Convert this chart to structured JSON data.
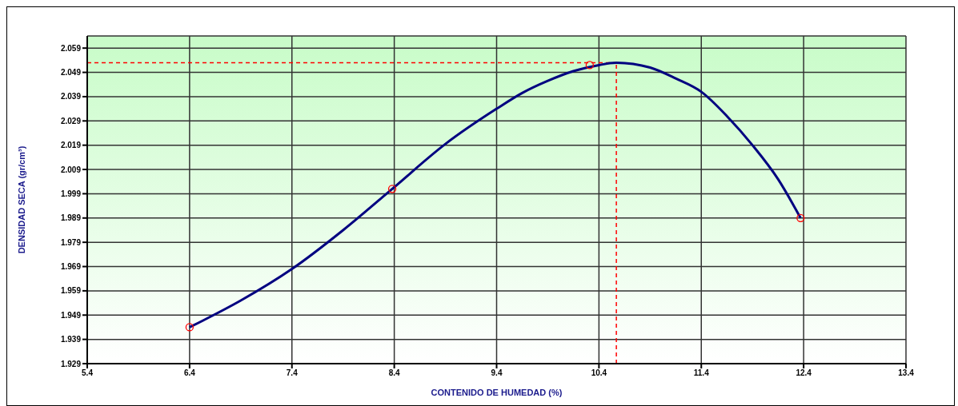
{
  "chart_data": {
    "type": "line",
    "xlabel": "CONTENIDO DE HUMEDAD (%)",
    "ylabel": "DENSIDAD SECA (gr/cm³)",
    "series": [
      {
        "type": "line",
        "color": "#000080",
        "marker": "none",
        "x": [
          6.4,
          6.9,
          7.4,
          7.9,
          8.38,
          8.9,
          9.4,
          9.65,
          9.9,
          10.15,
          10.4,
          10.57,
          10.9,
          11.15,
          11.4,
          11.65,
          11.9,
          12.15,
          12.37
        ],
        "values": [
          1.944,
          1.955,
          1.968,
          1.984,
          2.001,
          2.0195,
          2.034,
          2.0405,
          2.0455,
          2.0495,
          2.052,
          2.053,
          2.051,
          2.0465,
          2.041,
          2.031,
          2.019,
          2.005,
          1.989
        ]
      },
      {
        "type": "scatter",
        "color": "#ff0000",
        "marker": "circle",
        "x": [
          6.4,
          8.38,
          10.31,
          12.37
        ],
        "values": [
          1.944,
          2.001,
          2.052,
          1.989
        ]
      }
    ],
    "xlim": [
      5.4,
      13.4
    ],
    "xticks": [
      5.4,
      6.4,
      7.4,
      8.4,
      9.4,
      10.4,
      11.4,
      12.4,
      13.4
    ],
    "ylim": [
      1.929,
      2.064
    ],
    "yticks": [
      1.929,
      1.939,
      1.949,
      1.959,
      1.969,
      1.979,
      1.989,
      1.999,
      2.009,
      2.019,
      2.029,
      2.039,
      2.049,
      2.059
    ],
    "ref_lines": [
      {
        "axis": "y",
        "value": 2.053,
        "color": "#ff0000",
        "line_style": "dashed"
      },
      {
        "axis": "x",
        "value": 10.57,
        "color": "#ff0000",
        "line_style": "dashed"
      }
    ],
    "grid": true,
    "legend": false
  }
}
